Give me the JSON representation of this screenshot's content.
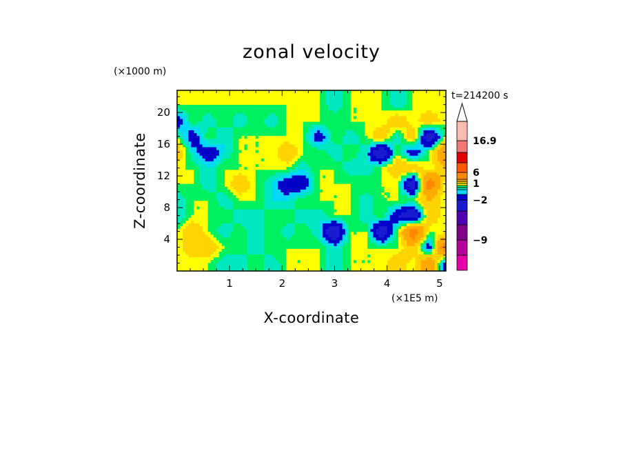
{
  "chart_data": {
    "type": "heatmap",
    "title": "zonal velocity",
    "xlabel": "X-coordinate",
    "ylabel": "Z-coordinate",
    "x_unit": "(×1E5 m)",
    "y_unit": "(×1000 m)",
    "time_label": "t=214200 s",
    "xlim": [
      0,
      5.12
    ],
    "ylim": [
      0,
      22.8
    ],
    "x_ticks": [
      "1",
      "2",
      "3",
      "4",
      "5"
    ],
    "x_tick_values": [
      1,
      2,
      3,
      4,
      5
    ],
    "y_ticks": [
      "4",
      "8",
      "12",
      "16",
      "20"
    ],
    "y_tick_values": [
      4,
      8,
      12,
      16,
      20
    ],
    "colorbar": {
      "labels": [
        "16.9",
        "6",
        "1",
        "−2",
        "−9"
      ],
      "label_values": [
        16.9,
        6,
        1,
        -2,
        -9
      ],
      "levels": [
        -16,
        -12,
        -9,
        -6,
        -4,
        -2,
        -1,
        -0.5,
        0,
        0.5,
        1,
        2,
        4,
        6,
        9,
        12,
        16.9
      ],
      "colors": [
        "#e600a8",
        "#b3009c",
        "#80008c",
        "#5000b0",
        "#1a1ad0",
        "#0000c8",
        "#00d8ff",
        "#00e8c0",
        "#00f060",
        "#ffff00",
        "#ffd400",
        "#ffaa00",
        "#ff8800",
        "#ff5a00",
        "#e00000",
        "#f27878",
        "#f8bcb0"
      ],
      "extend": "max"
    },
    "field_samples": {
      "x": [
        0.0,
        0.3,
        0.6,
        0.9,
        1.2,
        1.5,
        1.8,
        2.1,
        2.4,
        2.7,
        3.0,
        3.3,
        3.6,
        3.9,
        4.2,
        4.5,
        4.8,
        5.1
      ],
      "z": [
        1,
        3,
        5,
        7,
        9,
        11,
        13,
        15,
        17,
        19,
        21
      ],
      "values": [
        [
          0.5,
          0.5,
          0.5,
          -0.5,
          -0.5,
          0.5,
          -0.5,
          0.5,
          0.5,
          0.5,
          -0.5,
          0.5,
          0.5,
          0.5,
          2,
          0.5,
          4,
          -2
        ],
        [
          0.5,
          2,
          2,
          0.5,
          0.5,
          -0.5,
          0.5,
          0.5,
          0.5,
          0.5,
          -0.5,
          0.5,
          0.5,
          0.5,
          0.5,
          2,
          -2,
          6
        ],
        [
          0.5,
          2,
          0.5,
          -0.5,
          0.5,
          -0.5,
          0.5,
          -0.5,
          0.5,
          -0.5,
          -4,
          0.5,
          0.5,
          -4,
          0.5,
          6,
          0.5,
          0.5
        ],
        [
          -0.5,
          0.5,
          0.5,
          0.5,
          -0.5,
          -0.5,
          0.5,
          0.5,
          -0.5,
          -0.5,
          0.5,
          0.5,
          -0.5,
          0.5,
          -2,
          -4,
          2,
          0.5
        ],
        [
          -0.5,
          0.5,
          0.5,
          -0.5,
          0.5,
          0.5,
          -0.5,
          -0.5,
          0.5,
          0.5,
          0.5,
          0.5,
          -0.5,
          0.5,
          0.5,
          0.5,
          2,
          0.5
        ],
        [
          0.5,
          0.5,
          -0.5,
          0.5,
          2,
          0.5,
          -0.5,
          -2,
          -2,
          0.5,
          0.5,
          0.5,
          0.5,
          0.5,
          0.5,
          -4,
          6,
          0.5
        ],
        [
          0.5,
          0.5,
          -0.5,
          0.5,
          0.5,
          0.5,
          0.5,
          0.5,
          -0.5,
          0.5,
          0.5,
          -0.5,
          -0.5,
          0.5,
          2,
          2,
          0.5,
          2
        ],
        [
          2,
          -0.5,
          -2,
          -0.5,
          0.5,
          0.5,
          0.5,
          2,
          0.5,
          0.5,
          -0.5,
          0.5,
          -0.5,
          -4,
          0.5,
          -2,
          0.5,
          4
        ],
        [
          0.5,
          -2,
          0.5,
          -0.5,
          0.5,
          0.5,
          0.5,
          0.5,
          0.5,
          -2,
          0.5,
          -0.5,
          0.5,
          2,
          -0.5,
          2,
          -4,
          0.5
        ],
        [
          -2,
          0.5,
          -0.5,
          0.5,
          -0.5,
          0.5,
          -0.5,
          0.5,
          0.5,
          0.5,
          0.5,
          0.5,
          0.5,
          0.5,
          2,
          0.5,
          2,
          0.5
        ],
        [
          0.5,
          0.5,
          0.5,
          0.5,
          0.5,
          0.5,
          0.5,
          0.5,
          0.5,
          0.5,
          -0.5,
          0.5,
          0.5,
          0.5,
          -0.5,
          0.5,
          0.5,
          0.5
        ]
      ]
    }
  }
}
